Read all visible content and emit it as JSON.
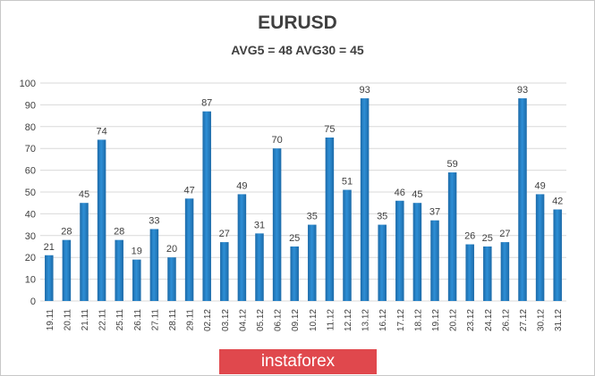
{
  "chart_data": {
    "type": "bar",
    "title": "EURUSD",
    "subtitle": "AVG5 = 48 AVG30 = 45",
    "xlabel": "",
    "ylabel": "",
    "ylim": [
      0,
      100
    ],
    "yticks": [
      0,
      10,
      20,
      30,
      40,
      50,
      60,
      70,
      80,
      90,
      100
    ],
    "grid": true,
    "legend": "none",
    "colors": {
      "bar": "#2e8fd6",
      "bar_dark": "#1c6aa8",
      "grid": "#d9d9d9",
      "text": "#404040"
    },
    "categories": [
      "19.11",
      "20.11",
      "21.11",
      "22.11",
      "25.11",
      "26.11",
      "27.11",
      "28.11",
      "29.11",
      "02.12",
      "03.12",
      "04.12",
      "05.12",
      "06.12",
      "09.12",
      "10.12",
      "11.12",
      "12.12",
      "13.12",
      "16.12",
      "17.12",
      "18.12",
      "19.12",
      "20.12",
      "23.12",
      "24.12",
      "26.12",
      "27.12",
      "30.12",
      "31.12"
    ],
    "values": [
      21,
      28,
      45,
      74,
      28,
      19,
      33,
      20,
      47,
      87,
      27,
      49,
      31,
      70,
      25,
      35,
      75,
      51,
      93,
      35,
      46,
      45,
      37,
      59,
      26,
      25,
      27,
      93,
      49,
      42
    ]
  },
  "logo": {
    "text": "instaforex"
  }
}
